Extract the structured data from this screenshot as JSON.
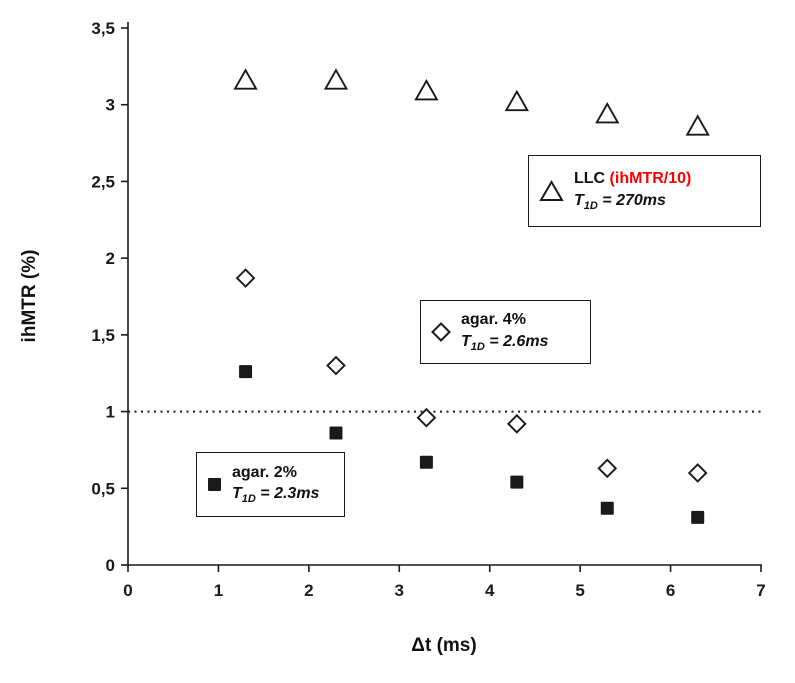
{
  "colors": {
    "ink": "#1a1a1a",
    "red": "#ff0000",
    "background": "#ffffff",
    "marker_fill": "#ffffff"
  },
  "chart_data": {
    "type": "scatter",
    "title": "",
    "xlabel": "Δt (ms)",
    "ylabel": "ihMTR (%)",
    "xlim": [
      0,
      7
    ],
    "ylim": [
      0,
      3.5
    ],
    "grid": false,
    "x_ticks": [
      0,
      1,
      2,
      3,
      4,
      5,
      6,
      7
    ],
    "x_tick_labels": [
      "0",
      "1",
      "2",
      "3",
      "4",
      "5",
      "6",
      "7"
    ],
    "y_ticks": [
      0,
      0.5,
      1,
      1.5,
      2,
      2.5,
      3,
      3.5
    ],
    "y_tick_labels": [
      "0",
      "0,5",
      "1",
      "1,5",
      "2",
      "2,5",
      "3",
      "3,5"
    ],
    "reference_line": {
      "y": 1,
      "style": "dotted"
    },
    "series": [
      {
        "name": "LLC (ihMTR/10)",
        "marker": "triangle-open",
        "x": [
          1.3,
          2.3,
          3.3,
          4.3,
          5.3,
          6.3
        ],
        "y": [
          3.16,
          3.16,
          3.09,
          3.02,
          2.94,
          2.86
        ]
      },
      {
        "name": "agar. 4%",
        "marker": "diamond-open",
        "x": [
          1.3,
          2.3,
          3.3,
          4.3,
          5.3,
          6.3
        ],
        "y": [
          1.87,
          1.3,
          0.96,
          0.92,
          0.63,
          0.6
        ]
      },
      {
        "name": "agar. 2%",
        "marker": "square-filled",
        "x": [
          1.3,
          2.3,
          3.3,
          4.3,
          5.3,
          6.3
        ],
        "y": [
          1.26,
          0.86,
          0.67,
          0.54,
          0.37,
          0.31
        ]
      }
    ],
    "legends": [
      {
        "marker": "triangle-open",
        "name_black": "LLC ",
        "name_red": "(ihMTR/10)",
        "t_symbol": "T",
        "t_sub": "1D",
        "t_value": " = 270ms"
      },
      {
        "marker": "diamond-open",
        "name_black": "agar. 4%",
        "name_red": "",
        "t_symbol": "T",
        "t_sub": "1D",
        "t_value": " = 2.6ms"
      },
      {
        "marker": "square-filled",
        "name_black": "agar. 2%",
        "name_red": "",
        "t_symbol": "T",
        "t_sub": "1D",
        "t_value": " = 2.3ms"
      }
    ]
  }
}
